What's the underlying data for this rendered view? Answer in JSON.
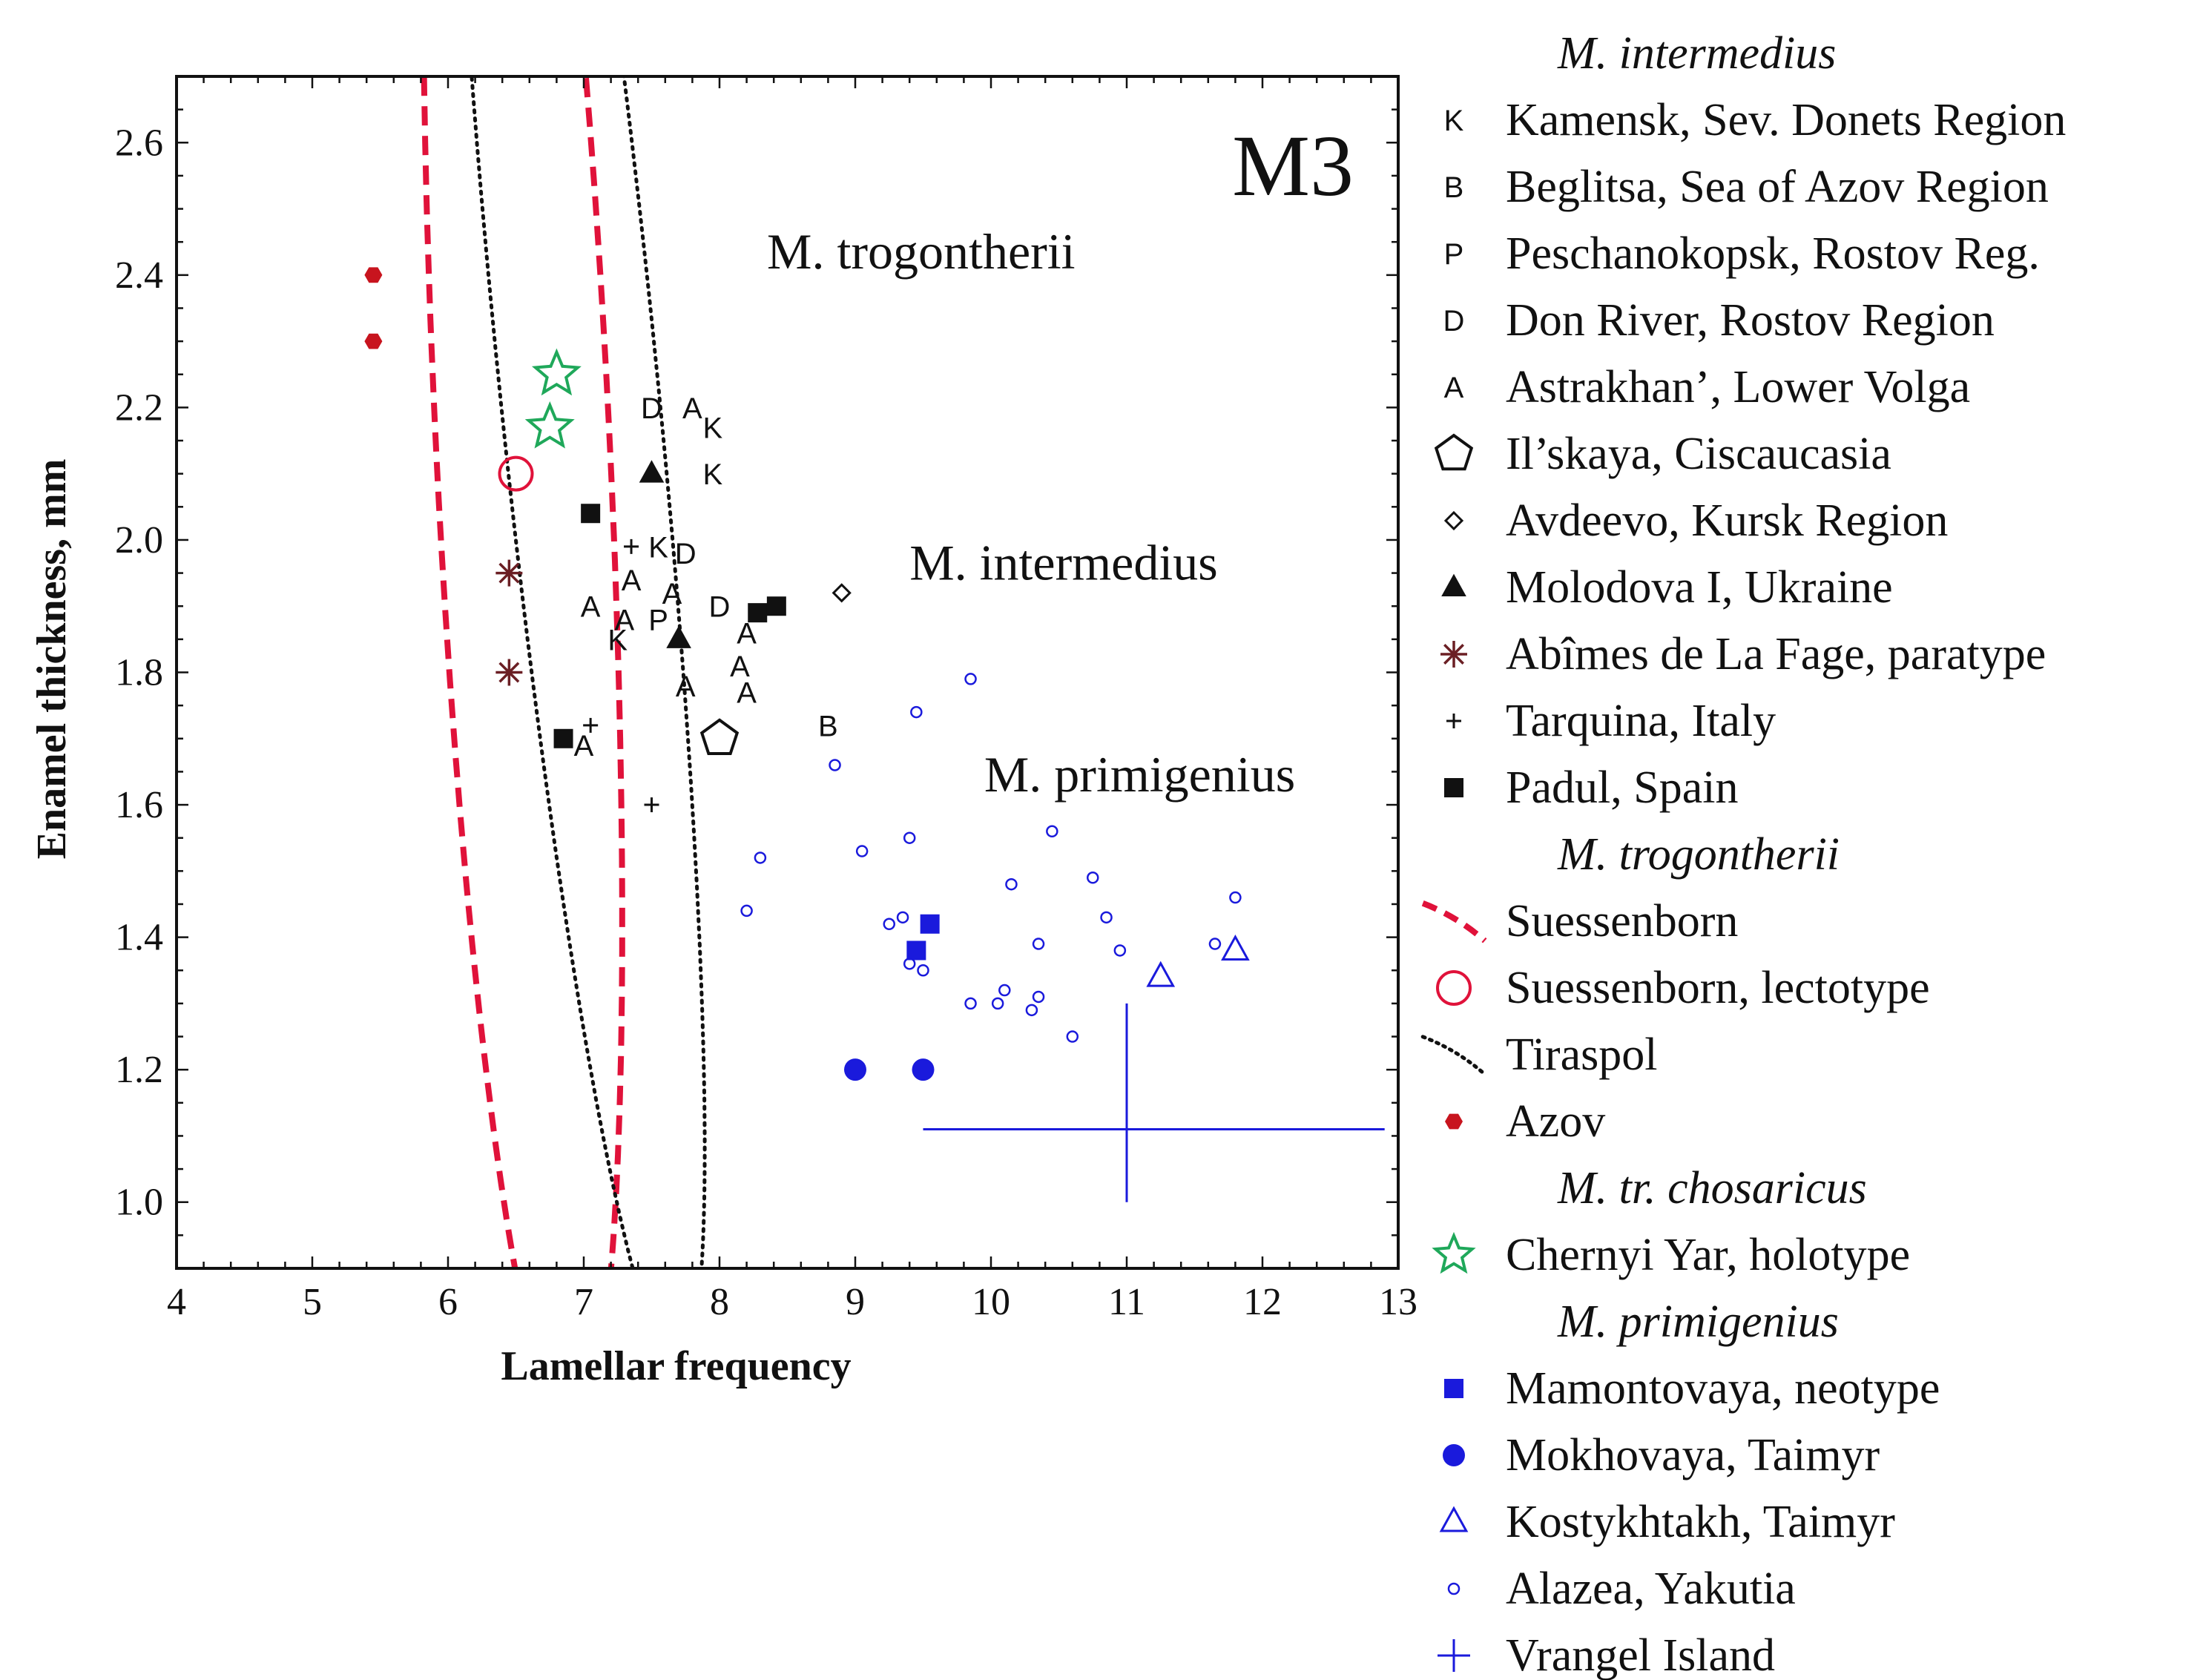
{
  "chart_data": {
    "type": "scatter",
    "panel_label": "M3",
    "xlabel": "Lamellar frequency",
    "ylabel": "Enamel thickness, mm",
    "xlim": [
      4,
      13
    ],
    "ylim": [
      0.9,
      2.7
    ],
    "x_ticks": [
      4,
      5,
      6,
      7,
      8,
      9,
      10,
      11,
      12,
      13
    ],
    "y_ticks": [
      1.0,
      1.2,
      1.4,
      1.6,
      1.8,
      2.0,
      2.2,
      2.4,
      2.6
    ],
    "grid": false,
    "annotations": [
      {
        "text": "M. trogontherii",
        "x": 8.35,
        "y": 2.41
      },
      {
        "text": "M. intermedius",
        "x": 9.4,
        "y": 1.94
      },
      {
        "text": "M. primigenius",
        "x": 9.95,
        "y": 1.62
      }
    ],
    "ellipses": [
      {
        "name": "Suessenborn",
        "style": "dashed",
        "color": "#e0123a",
        "cx": 6.55,
        "cy": 2.15,
        "rx": 1.55,
        "ry": 0.62,
        "rotation_deg": -74
      },
      {
        "name": "Tiraspol",
        "style": "dotted",
        "color": "#111111",
        "cx": 6.95,
        "cy": 2.26,
        "rx": 1.7,
        "ry": 0.52,
        "rotation_deg": -61
      }
    ],
    "vrangel_cross": {
      "x": 11.0,
      "y": 1.11,
      "x_range": [
        9.5,
        12.9
      ],
      "y_range": [
        1.0,
        1.3
      ]
    },
    "series": [
      {
        "name": "Kamensk, Sev. Donets Region",
        "group": "M. intermedius",
        "marker": "letter",
        "letter": "K",
        "color": "#111111",
        "points": [
          [
            7.95,
            2.17
          ],
          [
            7.95,
            2.1
          ],
          [
            7.55,
            1.99
          ],
          [
            7.25,
            1.85
          ]
        ]
      },
      {
        "name": "Beglitsa, Sea of Azov Region",
        "group": "M. intermedius",
        "marker": "letter",
        "letter": "B",
        "color": "#111111",
        "points": [
          [
            8.8,
            1.72
          ]
        ]
      },
      {
        "name": "Peschanokopsk, Rostov Reg.",
        "group": "M. intermedius",
        "marker": "letter",
        "letter": "P",
        "color": "#111111",
        "points": [
          [
            7.55,
            1.88
          ]
        ]
      },
      {
        "name": "Don River, Rostov Region",
        "group": "M. intermedius",
        "marker": "letter",
        "letter": "D",
        "color": "#111111",
        "points": [
          [
            7.5,
            2.2
          ],
          [
            7.75,
            1.98
          ],
          [
            8.0,
            1.9
          ]
        ]
      },
      {
        "name": "Astrakhan’, Lower Volga",
        "group": "M. intermedius",
        "marker": "letter",
        "letter": "A",
        "color": "#111111",
        "points": [
          [
            7.8,
            2.2
          ],
          [
            7.35,
            1.94
          ],
          [
            7.65,
            1.92
          ],
          [
            7.05,
            1.9
          ],
          [
            7.3,
            1.88
          ],
          [
            8.2,
            1.86
          ],
          [
            8.15,
            1.81
          ],
          [
            7.75,
            1.78
          ],
          [
            8.2,
            1.77
          ],
          [
            7.0,
            1.69
          ]
        ]
      },
      {
        "name": "Il’skaya, Ciscaucasia",
        "group": "M. intermedius",
        "marker": "pentagon",
        "color": "#111111",
        "points": [
          [
            8.0,
            1.7
          ]
        ]
      },
      {
        "name": "Avdeevo, Kursk Region",
        "group": "M. intermedius",
        "marker": "diamond-open",
        "color": "#111111",
        "points": [
          [
            8.9,
            1.92
          ]
        ]
      },
      {
        "name": "Molodova I, Ukraine",
        "group": "M. intermedius",
        "marker": "triangle-filled",
        "color": "#111111",
        "points": [
          [
            7.5,
            2.1
          ],
          [
            7.7,
            1.85
          ]
        ]
      },
      {
        "name": "Abîmes de La Fage, paratype",
        "group": "M. intermedius",
        "marker": "asterisk",
        "color": "#6b1f24",
        "points": [
          [
            6.45,
            1.95
          ],
          [
            6.45,
            1.8
          ]
        ]
      },
      {
        "name": "Tarquina, Italy",
        "group": "M. intermedius",
        "marker": "plus-small",
        "color": "#111111",
        "points": [
          [
            7.35,
            1.99
          ],
          [
            7.05,
            1.72
          ],
          [
            7.5,
            1.6
          ]
        ]
      },
      {
        "name": "Padul, Spain",
        "group": "M. intermedius",
        "marker": "square-filled",
        "color": "#111111",
        "points": [
          [
            7.05,
            2.04
          ],
          [
            8.28,
            1.89
          ],
          [
            8.42,
            1.9
          ],
          [
            6.85,
            1.7
          ]
        ]
      },
      {
        "name": "Suessenborn, lectotype",
        "group": "M. trogontherii",
        "marker": "circle-open",
        "color": "#e0123a",
        "points": [
          [
            6.5,
            2.1
          ]
        ]
      },
      {
        "name": "Azov",
        "group": "M. trogontherii",
        "marker": "hexagon-filled",
        "color": "#c8141e",
        "points": [
          [
            5.45,
            2.4
          ],
          [
            5.45,
            2.3
          ]
        ]
      },
      {
        "name": "Chernyi Yar, holotype",
        "group": "M. tr. chosaricus",
        "marker": "star-open",
        "color": "#1fa85a",
        "points": [
          [
            6.8,
            2.25
          ],
          [
            6.75,
            2.17
          ]
        ]
      },
      {
        "name": "Mamontovaya, neotype",
        "group": "M. primigenius",
        "marker": "square-filled",
        "color": "#1a1adc",
        "points": [
          [
            9.55,
            1.42
          ],
          [
            9.45,
            1.38
          ]
        ]
      },
      {
        "name": "Mokhovaya, Taimyr",
        "group": "M. primigenius",
        "marker": "circle-filled",
        "color": "#1a1adc",
        "points": [
          [
            9.0,
            1.2
          ],
          [
            9.5,
            1.2
          ]
        ]
      },
      {
        "name": "Kostykhtakh, Taimyr",
        "group": "M. primigenius",
        "marker": "triangle-open",
        "color": "#1a1adc",
        "points": [
          [
            11.25,
            1.34
          ],
          [
            11.8,
            1.38
          ]
        ]
      },
      {
        "name": "Alazea, Yakutia",
        "group": "M. primigenius",
        "marker": "circle-small-open",
        "color": "#1a1adc",
        "points": [
          [
            9.85,
            1.79
          ],
          [
            9.45,
            1.74
          ],
          [
            8.85,
            1.66
          ],
          [
            10.45,
            1.56
          ],
          [
            9.05,
            1.53
          ],
          [
            9.4,
            1.55
          ],
          [
            8.3,
            1.52
          ],
          [
            10.15,
            1.48
          ],
          [
            10.75,
            1.49
          ],
          [
            11.8,
            1.46
          ],
          [
            8.2,
            1.44
          ],
          [
            9.35,
            1.43
          ],
          [
            9.25,
            1.42
          ],
          [
            10.85,
            1.43
          ],
          [
            10.35,
            1.39
          ],
          [
            11.65,
            1.39
          ],
          [
            9.4,
            1.36
          ],
          [
            9.5,
            1.35
          ],
          [
            10.95,
            1.38
          ],
          [
            10.1,
            1.32
          ],
          [
            10.05,
            1.3
          ],
          [
            9.85,
            1.3
          ],
          [
            10.35,
            1.31
          ],
          [
            10.3,
            1.29
          ],
          [
            10.6,
            1.25
          ]
        ]
      },
      {
        "name": "Vrangel Island",
        "group": "M. primigenius",
        "marker": "plus-large",
        "color": "#1a1adc",
        "points": [
          [
            11.0,
            1.11
          ]
        ]
      }
    ],
    "legend": [
      {
        "type": "header",
        "text": "M. intermedius"
      },
      {
        "type": "item",
        "text": "Kamensk, Sev. Donets Region",
        "marker": "letter",
        "letter": "K",
        "color": "#111111"
      },
      {
        "type": "item",
        "text": "Beglitsa, Sea of Azov Region",
        "marker": "letter",
        "letter": "B",
        "color": "#111111"
      },
      {
        "type": "item",
        "text": "Peschanokopsk, Rostov Reg.",
        "marker": "letter",
        "letter": "P",
        "color": "#111111"
      },
      {
        "type": "item",
        "text": "Don River, Rostov Region",
        "marker": "letter",
        "letter": "D",
        "color": "#111111"
      },
      {
        "type": "item",
        "text": "Astrakhan’, Lower Volga",
        "marker": "letter",
        "letter": "A",
        "color": "#111111"
      },
      {
        "type": "item",
        "text": "Il’skaya, Ciscaucasia",
        "marker": "pentagon",
        "color": "#111111"
      },
      {
        "type": "item",
        "text": "Avdeevo, Kursk Region",
        "marker": "diamond-open",
        "color": "#111111"
      },
      {
        "type": "item",
        "text": "Molodova I, Ukraine",
        "marker": "triangle-filled",
        "color": "#111111"
      },
      {
        "type": "item",
        "text": "Abîmes de La Fage, paratype",
        "marker": "asterisk",
        "color": "#6b1f24"
      },
      {
        "type": "item",
        "text": "Tarquina, Italy",
        "marker": "plus-small",
        "color": "#111111"
      },
      {
        "type": "item",
        "text": "Padul, Spain",
        "marker": "square-filled",
        "color": "#111111"
      },
      {
        "type": "header",
        "text": "M. trogontherii"
      },
      {
        "type": "item",
        "text": "Suessenborn",
        "marker": "line-dashed",
        "color": "#e0123a"
      },
      {
        "type": "item",
        "text": "Suessenborn, lectotype",
        "marker": "circle-open",
        "color": "#e0123a"
      },
      {
        "type": "item",
        "text": "Tiraspol",
        "marker": "line-dotted",
        "color": "#111111"
      },
      {
        "type": "item",
        "text": "Azov",
        "marker": "hexagon-filled",
        "color": "#c8141e"
      },
      {
        "type": "header",
        "text": "M. tr. chosaricus"
      },
      {
        "type": "item",
        "text": "Chernyi Yar, holotype",
        "marker": "star-open",
        "color": "#1fa85a"
      },
      {
        "type": "header",
        "text": "M. primigenius"
      },
      {
        "type": "item",
        "text": "Mamontovaya, neotype",
        "marker": "square-filled",
        "color": "#1a1adc"
      },
      {
        "type": "item",
        "text": "Mokhovaya, Taimyr",
        "marker": "circle-filled",
        "color": "#1a1adc"
      },
      {
        "type": "item",
        "text": "Kostykhtakh, Taimyr",
        "marker": "triangle-open",
        "color": "#1a1adc"
      },
      {
        "type": "item",
        "text": "Alazea, Yakutia",
        "marker": "circle-small-open",
        "color": "#1a1adc"
      },
      {
        "type": "item",
        "text": "Vrangel Island",
        "marker": "plus-large",
        "color": "#1a1adc"
      }
    ]
  }
}
